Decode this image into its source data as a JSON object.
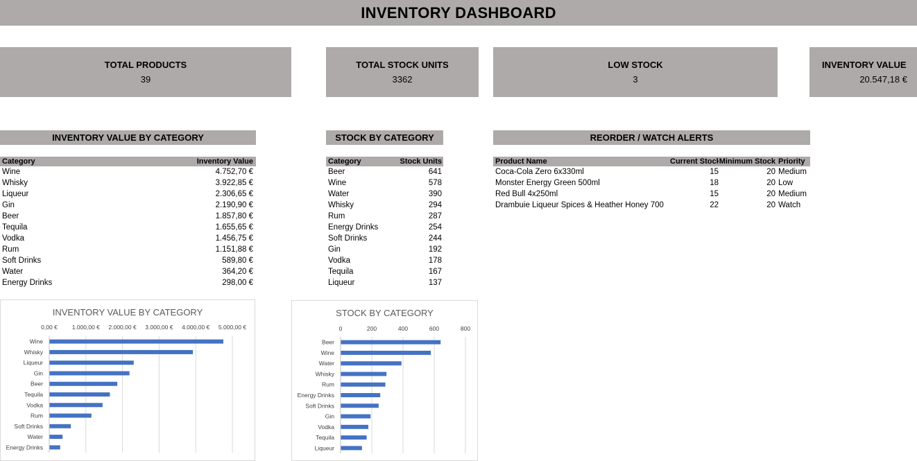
{
  "title": "INVENTORY DASHBOARD",
  "kpis": {
    "total_products": {
      "label": "TOTAL PRODUCTS",
      "value": "39"
    },
    "total_stock": {
      "label": "TOTAL STOCK UNITS",
      "value": "3362"
    },
    "low_stock": {
      "label": "LOW STOCK",
      "value": "3"
    },
    "inventory_value": {
      "label": "INVENTORY VALUE",
      "value": "20.547,18 €"
    }
  },
  "sections": {
    "value_by_category": "INVENTORY VALUE BY CATEGORY",
    "stock_by_category": "STOCK BY CATEGORY",
    "alerts": "REORDER / WATCH ALERTS"
  },
  "value_table": {
    "headers": [
      "Category",
      "Inventory Value"
    ],
    "rows": [
      [
        "Wine",
        "4.752,70 €"
      ],
      [
        "Whisky",
        "3.922,85 €"
      ],
      [
        "Liqueur",
        "2.306,65 €"
      ],
      [
        "Gin",
        "2.190,90 €"
      ],
      [
        "Beer",
        "1.857,80 €"
      ],
      [
        "Tequila",
        "1.655,65 €"
      ],
      [
        "Vodka",
        "1.456,75 €"
      ],
      [
        "Rum",
        "1.151,88 €"
      ],
      [
        "Soft Drinks",
        "589,80 €"
      ],
      [
        "Water",
        "364,20 €"
      ],
      [
        "Energy Drinks",
        "298,00 €"
      ]
    ]
  },
  "stock_table": {
    "headers": [
      "Category",
      "Stock Units"
    ],
    "rows": [
      [
        "Beer",
        "641"
      ],
      [
        "Wine",
        "578"
      ],
      [
        "Water",
        "390"
      ],
      [
        "Whisky",
        "294"
      ],
      [
        "Rum",
        "287"
      ],
      [
        "Energy Drinks",
        "254"
      ],
      [
        "Soft Drinks",
        "244"
      ],
      [
        "Gin",
        "192"
      ],
      [
        "Vodka",
        "178"
      ],
      [
        "Tequila",
        "167"
      ],
      [
        "Liqueur",
        "137"
      ]
    ]
  },
  "alerts_table": {
    "headers": [
      "Product Name",
      "Current Stock",
      "Minimum Stock",
      "Priority"
    ],
    "rows": [
      [
        "Coca-Cola Zero 6x330ml",
        "15",
        "20",
        "Medium"
      ],
      [
        "Monster Energy Green 500ml",
        "18",
        "20",
        "Low"
      ],
      [
        "Red Bull 4x250ml",
        "15",
        "20",
        "Medium"
      ],
      [
        "Drambuie Liqueur Spices & Heather Honey 700",
        "22",
        "20",
        "Watch"
      ]
    ]
  },
  "colors": {
    "header_fill": "#aeaaaa",
    "bar": "#4472c4"
  },
  "chart_data": [
    {
      "type": "bar",
      "orientation": "horizontal",
      "title": "INVENTORY VALUE BY CATEGORY",
      "categories": [
        "Wine",
        "Whisky",
        "Liqueur",
        "Gin",
        "Beer",
        "Tequila",
        "Vodka",
        "Rum",
        "Soft Drinks",
        "Water",
        "Energy Drinks"
      ],
      "values": [
        4752.7,
        3922.85,
        2306.65,
        2190.9,
        1857.8,
        1655.65,
        1456.75,
        1151.88,
        589.8,
        364.2,
        298.0
      ],
      "xlim": [
        0,
        5000
      ],
      "ticks": [
        0,
        1000,
        2000,
        3000,
        4000,
        5000
      ],
      "tick_labels": [
        "0,00 €",
        "1.000,00 €",
        "2.000,00 €",
        "3.000,00 €",
        "4.000,00 €",
        "5.000,00 €"
      ],
      "axis_position": "top",
      "grid": true,
      "legend": "none"
    },
    {
      "type": "bar",
      "orientation": "horizontal",
      "title": "STOCK BY CATEGORY",
      "categories": [
        "Beer",
        "Wine",
        "Water",
        "Whisky",
        "Rum",
        "Energy Drinks",
        "Soft Drinks",
        "Gin",
        "Vodka",
        "Tequila",
        "Liqueur"
      ],
      "values": [
        641,
        578,
        390,
        294,
        287,
        254,
        244,
        192,
        178,
        167,
        137
      ],
      "xlim": [
        0,
        800
      ],
      "ticks": [
        0,
        200,
        400,
        600,
        800
      ],
      "tick_labels": [
        "0",
        "200",
        "400",
        "600",
        "800"
      ],
      "axis_position": "top",
      "grid": true,
      "legend": "none"
    }
  ]
}
